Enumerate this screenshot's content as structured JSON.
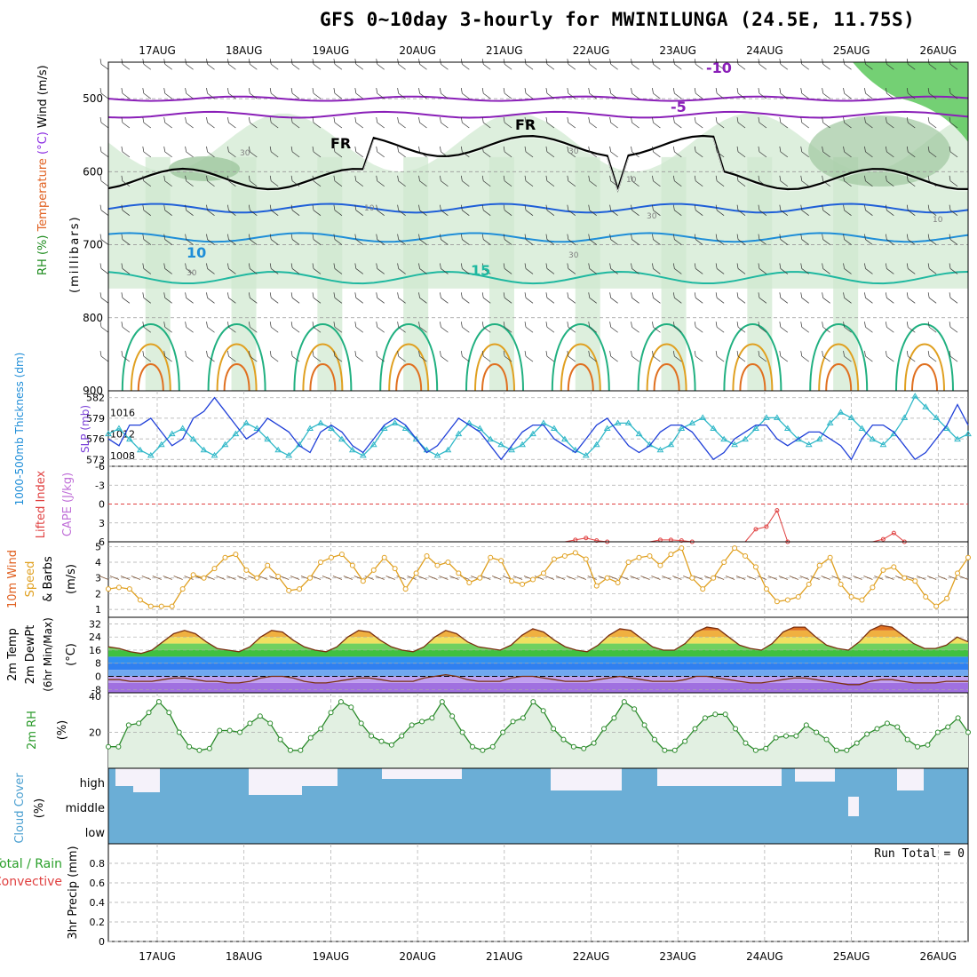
{
  "title": "GFS 0~10day 3-hourly for MWINILUNGA (24.5E, 11.75S)",
  "days": [
    "17AUG",
    "18AUG",
    "19AUG",
    "20AUG",
    "21AUG",
    "22AUG",
    "23AUG",
    "24AUG",
    "25AUG",
    "26AUG"
  ],
  "panels": {
    "upper": {
      "ylabel_parts": [
        {
          "text": "RH (%)",
          "color": "#1b8a1b"
        },
        {
          "text": "Temperature",
          "color": "#e06020"
        },
        {
          "text": "(°C)",
          "color": "#8a2be2"
        },
        {
          "text": "Wind (m/s)",
          "color": "#000000"
        }
      ],
      "ylabel2": "(millibars)",
      "pressure_ticks": [
        500,
        600,
        700,
        800,
        900
      ],
      "contour_labels": [
        {
          "text": "-10",
          "color": "#8a1fb8"
        },
        {
          "text": "-5",
          "color": "#8a1fb8"
        },
        {
          "text": "FR",
          "color": "#000000"
        },
        {
          "text": "FR",
          "color": "#000000"
        },
        {
          "text": "10",
          "color": "#1f8ed8"
        },
        {
          "text": "15",
          "color": "#1fb8a0"
        },
        {
          "text": "30",
          "color": "#808080"
        },
        {
          "text": "30",
          "color": "#808080"
        },
        {
          "text": "30",
          "color": "#808080"
        },
        {
          "text": "10",
          "color": "#808080"
        },
        {
          "text": "10",
          "color": "#808080"
        },
        {
          "text": "30",
          "color": "#808080"
        },
        {
          "text": "30",
          "color": "#808080"
        },
        {
          "text": "10",
          "color": "#808080"
        }
      ],
      "colors": {
        "rh_fill": "#cfe8cf",
        "rh_fill_dark": "#9fc79f",
        "rh_high": "#5cc85c",
        "fr_line": "#000000",
        "t_minus10": "#8a1fb8",
        "t_0": "#1f5fd8",
        "t_10": "#1f8ed8",
        "t_15": "#1fb8a0",
        "t_20": "#20b080",
        "t_25": "#e0a020",
        "t_30": "#e07020"
      }
    },
    "thickness": {
      "ylabel": "1000-500mb Thickness (dm)",
      "ylabel2": "SLP (mb)",
      "left_ticks": [
        "582",
        "579",
        "576",
        "573"
      ],
      "right_ticks": [
        "1016",
        "1012",
        "1008"
      ],
      "series": [
        {
          "name": "thickness",
          "color": "#1f3fd8",
          "values": [
            576,
            575,
            578,
            578,
            579,
            577,
            575,
            576,
            579,
            580,
            582,
            580,
            578,
            576,
            577,
            579,
            578,
            577,
            575,
            574,
            577,
            578,
            577,
            575,
            574,
            576,
            578,
            579,
            578,
            576,
            574,
            575,
            577,
            579,
            578,
            577,
            575,
            573,
            575,
            577,
            578,
            578,
            576,
            575,
            574,
            576,
            578,
            579,
            577,
            575,
            574,
            575,
            577,
            578,
            578,
            577,
            575,
            573,
            574,
            576,
            577,
            578,
            578,
            576,
            575,
            576,
            577,
            577,
            576,
            575,
            573,
            576,
            578,
            578,
            577,
            575,
            573,
            574,
            576,
            578,
            581,
            578
          ]
        },
        {
          "name": "slp",
          "color": "#30b8c8",
          "values": [
            1012,
            1013,
            1011,
            1009,
            1008,
            1010,
            1012,
            1013,
            1011,
            1009,
            1008,
            1010,
            1012,
            1014,
            1013,
            1011,
            1009,
            1008,
            1010,
            1013,
            1014,
            1013,
            1011,
            1009,
            1008,
            1010,
            1013,
            1014,
            1013,
            1011,
            1009,
            1008,
            1009,
            1012,
            1014,
            1013,
            1011,
            1010,
            1009,
            1010,
            1012,
            1014,
            1013,
            1011,
            1009,
            1008,
            1010,
            1013,
            1014,
            1014,
            1012,
            1010,
            1009,
            1010,
            1013,
            1014,
            1015,
            1013,
            1011,
            1010,
            1011,
            1013,
            1015,
            1015,
            1013,
            1011,
            1010,
            1011,
            1014,
            1016,
            1015,
            1013,
            1011,
            1010,
            1012,
            1015,
            1019,
            1017,
            1015,
            1013,
            1011,
            1012
          ]
        }
      ]
    },
    "cape": {
      "ylabel": "Lifted Index",
      "ylabel2": "CAPE (J/kg)",
      "ticks": [
        "-6",
        "-3",
        "0",
        "3",
        "6"
      ],
      "li_values": [
        6,
        6,
        6,
        6,
        6,
        6,
        6,
        6,
        6,
        6,
        6,
        6,
        6,
        6,
        6,
        6,
        6,
        6,
        6,
        6,
        6,
        6,
        6,
        6,
        6,
        6,
        6,
        6,
        6,
        6,
        6,
        6,
        6,
        6,
        6,
        6,
        6,
        6,
        6,
        6,
        6,
        6,
        6,
        6,
        5.7,
        5.4,
        5.8,
        6,
        6,
        6,
        6,
        6,
        5.7,
        5.7,
        5.8,
        6,
        6,
        6,
        6,
        6,
        6,
        4,
        3.6,
        1,
        6,
        6,
        6,
        6,
        6,
        6,
        6,
        6,
        6,
        5.6,
        4.6,
        6,
        6,
        6,
        6,
        6,
        6,
        6
      ]
    },
    "wind10m": {
      "ylabel": "10m Wind Speed & Barbs",
      "ylabel_parts": [
        {
          "text": "10m Wind",
          "color": "#e06020"
        },
        {
          "text": "Speed",
          "color": "#e0a020"
        },
        {
          "text": "& Barbs",
          "color": "#000000"
        }
      ],
      "unit": "(m/s)",
      "ticks": [
        "5",
        "4",
        "3",
        "2",
        "1"
      ],
      "values": [
        2.3,
        2.4,
        2.3,
        1.6,
        1.2,
        1.2,
        1.2,
        2.3,
        3.2,
        3.0,
        3.6,
        4.3,
        4.5,
        3.5,
        3.0,
        3.8,
        3.1,
        2.2,
        2.3,
        3.0,
        4.0,
        4.3,
        4.5,
        3.8,
        2.8,
        3.5,
        4.3,
        3.6,
        2.3,
        3.3,
        4.4,
        3.8,
        4.0,
        3.3,
        2.7,
        3.0,
        4.3,
        4.1,
        2.8,
        2.6,
        2.9,
        3.3,
        4.2,
        4.4,
        4.6,
        4.2,
        2.5,
        3.0,
        2.7,
        4.0,
        4.3,
        4.4,
        3.8,
        4.5,
        4.9,
        3.0,
        2.3,
        3.0,
        4.0,
        4.9,
        4.4,
        3.7,
        2.3,
        1.5,
        1.6,
        1.8,
        2.6,
        3.8,
        4.3,
        2.6,
        1.8,
        1.6,
        2.4,
        3.5,
        3.7,
        3.0,
        2.8,
        1.8,
        1.2,
        1.7,
        3.3,
        4.3
      ]
    },
    "temp2m": {
      "ylabel": "2m Temp",
      "ylabel2": "2m DewPt",
      "ylabel3": "(6hr Min/Max)",
      "unit": "(°C)",
      "ticks": [
        "32",
        "24",
        "16",
        "8",
        "0",
        "-8"
      ],
      "temp_values": [
        18,
        17,
        15,
        14,
        16,
        21,
        26,
        28,
        26,
        21,
        17,
        16,
        15,
        18,
        24,
        28,
        27,
        22,
        18,
        16,
        15,
        18,
        24,
        28,
        27,
        22,
        18,
        16,
        15,
        18,
        24,
        28,
        26,
        21,
        18,
        17,
        16,
        19,
        25,
        29,
        27,
        22,
        18,
        16,
        15,
        19,
        25,
        29,
        28,
        23,
        18,
        16,
        16,
        20,
        27,
        30,
        29,
        24,
        19,
        17,
        16,
        20,
        27,
        30,
        30,
        24,
        19,
        17,
        16,
        21,
        28,
        31,
        30,
        25,
        20,
        17,
        17,
        19,
        24,
        21
      ],
      "dewpt_values": [
        -2,
        -2,
        -3,
        -3,
        -3,
        -2,
        -1,
        -1,
        -2,
        -3,
        -3,
        -4,
        -4,
        -3,
        -1,
        0,
        0,
        -1,
        -3,
        -4,
        -4,
        -3,
        -2,
        -1,
        -1,
        -2,
        -3,
        -3,
        -3,
        -1,
        0,
        1,
        0,
        -2,
        -3,
        -3,
        -3,
        -1,
        0,
        0,
        -1,
        -2,
        -3,
        -3,
        -3,
        -2,
        -1,
        0,
        -1,
        -2,
        -3,
        -3,
        -3,
        -2,
        0,
        0,
        -1,
        -2,
        -3,
        -4,
        -4,
        -3,
        -2,
        -1,
        -1,
        -2,
        -3,
        -4,
        -5,
        -5,
        -3,
        -2,
        -2,
        -3,
        -4,
        -4,
        -4,
        -3,
        -3,
        -3
      ]
    },
    "rh2m": {
      "ylabel": "2m RH",
      "unit": "(%)",
      "ticks": [
        "40",
        "20"
      ],
      "values": [
        12,
        12,
        24,
        25,
        31,
        37,
        31,
        20,
        12,
        10,
        11,
        21,
        21,
        20,
        25,
        29,
        25,
        16,
        10,
        10,
        17,
        22,
        31,
        37,
        34,
        25,
        18,
        15,
        13,
        18,
        24,
        26,
        28,
        37,
        29,
        20,
        12,
        10,
        12,
        20,
        26,
        28,
        37,
        32,
        22,
        16,
        12,
        11,
        14,
        22,
        28,
        37,
        33,
        24,
        16,
        10,
        10,
        15,
        22,
        28,
        30,
        30,
        22,
        14,
        10,
        11,
        17,
        18,
        18,
        24,
        20,
        16,
        10,
        10,
        14,
        19,
        22,
        25,
        23,
        16,
        12,
        13,
        20,
        23,
        28,
        20
      ]
    },
    "cloud": {
      "ylabel": "Cloud Cover",
      "unit": "(%)",
      "levels": [
        "high",
        "middle",
        "low"
      ],
      "color": "#6baed6"
    },
    "precip": {
      "ylabel_left1": "Total / Rain",
      "ylabel_left2": "Convective",
      "ylabel": "3hr Precip (mm)",
      "ticks": [
        "0.8",
        "0.6",
        "0.4",
        "0.2",
        "0"
      ],
      "run_total": "Run Total = 0"
    }
  },
  "chart_data": {
    "type": "line",
    "title": "GFS 0~10day 3-hourly for MWINILUNGA (24.5E, 11.75S)",
    "x_categories": [
      "17AUG",
      "18AUG",
      "19AUG",
      "20AUG",
      "21AUG",
      "22AUG",
      "23AUG",
      "24AUG",
      "25AUG",
      "26AUG"
    ],
    "ylim_pressure": [
      450,
      900
    ],
    "ylim_thickness": [
      572,
      583
    ],
    "ylim_slp": [
      1006,
      1020
    ],
    "ylim_lifted_index": [
      -6,
      6
    ],
    "ylim_wind": [
      0.5,
      5.3
    ],
    "ylim_temp": [
      -10,
      36
    ],
    "ylim_rh": [
      0,
      42
    ],
    "ylim_precip": [
      0,
      1
    ],
    "grid": true,
    "precip_run_total": 0
  }
}
